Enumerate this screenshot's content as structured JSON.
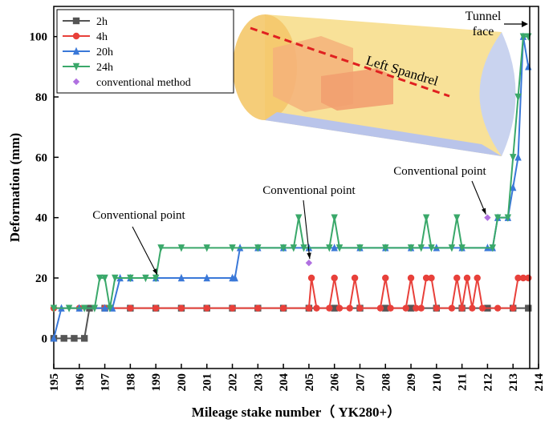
{
  "chart_data": {
    "type": "line",
    "x_label": "Mileage stake number（ YK280+）",
    "y_label": "Deformation (mm)",
    "xlim": [
      195,
      214
    ],
    "xticks": [
      195,
      196,
      197,
      198,
      199,
      200,
      201,
      202,
      203,
      204,
      205,
      206,
      207,
      208,
      209,
      210,
      211,
      212,
      213,
      214
    ],
    "ylim": [
      -10,
      110
    ],
    "yticks": [
      0,
      20,
      40,
      60,
      80,
      100
    ],
    "legend": "upper left",
    "series": [
      {
        "name": "2h",
        "color": "#555555",
        "marker": "square",
        "show_line": true,
        "x": [
          195,
          195.4,
          195.8,
          196.2,
          196.4,
          197,
          198,
          199,
          200,
          201,
          202,
          203,
          204,
          205,
          206,
          207,
          208,
          209,
          210,
          211,
          212,
          213,
          213.6
        ],
        "values": [
          0,
          0,
          0,
          0,
          10,
          10,
          10,
          10,
          10,
          10,
          10,
          10,
          10,
          10,
          10,
          10,
          10,
          10,
          10,
          10,
          10,
          10,
          10
        ]
      },
      {
        "name": "4h",
        "color": "#e8403a",
        "marker": "circle",
        "show_line": true,
        "x": [
          195,
          196,
          197,
          198,
          199,
          200,
          201,
          202,
          203,
          204,
          205,
          205.1,
          205.3,
          205.8,
          206,
          206.2,
          206.6,
          206.8,
          207,
          207.8,
          208,
          208.2,
          208.8,
          209,
          209.2,
          209.4,
          209.6,
          209.8,
          210,
          210.6,
          210.8,
          211,
          211.2,
          211.4,
          211.6,
          211.8,
          212.4,
          213,
          213.2,
          213.4,
          213.6
        ],
        "values": [
          10,
          10,
          10,
          10,
          10,
          10,
          10,
          10,
          10,
          10,
          10,
          20,
          10,
          10,
          20,
          10,
          10,
          20,
          10,
          10,
          20,
          10,
          10,
          20,
          10,
          10,
          20,
          20,
          10,
          10,
          20,
          10,
          20,
          10,
          20,
          10,
          10,
          10,
          20,
          20,
          20
        ]
      },
      {
        "name": "20h",
        "color": "#3a78d8",
        "marker": "triangle-up",
        "show_line": true,
        "x": [
          195,
          195.3,
          196,
          197,
          197.3,
          197.6,
          198,
          199,
          200,
          201,
          202,
          202.1,
          202.3,
          203,
          204,
          205,
          206,
          207,
          208,
          209,
          210,
          211,
          212,
          212.2,
          212.4,
          212.8,
          213,
          213.2,
          213.4,
          213.6
        ],
        "values": [
          0,
          10,
          10,
          10,
          10,
          20,
          20,
          20,
          20,
          20,
          20,
          20,
          30,
          30,
          30,
          30,
          30,
          30,
          30,
          30,
          30,
          30,
          30,
          30,
          40,
          40,
          50,
          60,
          100,
          90
        ]
      },
      {
        "name": "24h",
        "color": "#3aa86a",
        "marker": "triangle-down",
        "show_line": true,
        "x": [
          195,
          195.6,
          196.2,
          196.6,
          196.8,
          197,
          197.2,
          197.4,
          198,
          198.6,
          199,
          199.2,
          200,
          201,
          202,
          203,
          204,
          204.4,
          204.6,
          204.8,
          205.8,
          206,
          206.2,
          207,
          208,
          209,
          209.4,
          209.6,
          209.8,
          210.6,
          210.8,
          211,
          212.2,
          212.4,
          212.8,
          213,
          213.2,
          213.4,
          213.6
        ],
        "values": [
          10,
          10,
          10,
          10,
          20,
          20,
          10,
          20,
          20,
          20,
          20,
          30,
          30,
          30,
          30,
          30,
          30,
          30,
          40,
          30,
          30,
          40,
          30,
          30,
          30,
          30,
          30,
          40,
          30,
          30,
          40,
          30,
          30,
          40,
          40,
          60,
          80,
          100,
          100
        ]
      },
      {
        "name": "conventional method",
        "color": "#b070e0",
        "marker": "diamond",
        "show_line": false,
        "x": [
          205,
          212
        ],
        "values": [
          25,
          40
        ]
      }
    ],
    "annotations": [
      "Conventional point",
      "Conventional point",
      "Conventional point"
    ],
    "tunnel_face": [
      "Tunnel",
      "face"
    ],
    "inset_label": "Left Spandrel"
  }
}
